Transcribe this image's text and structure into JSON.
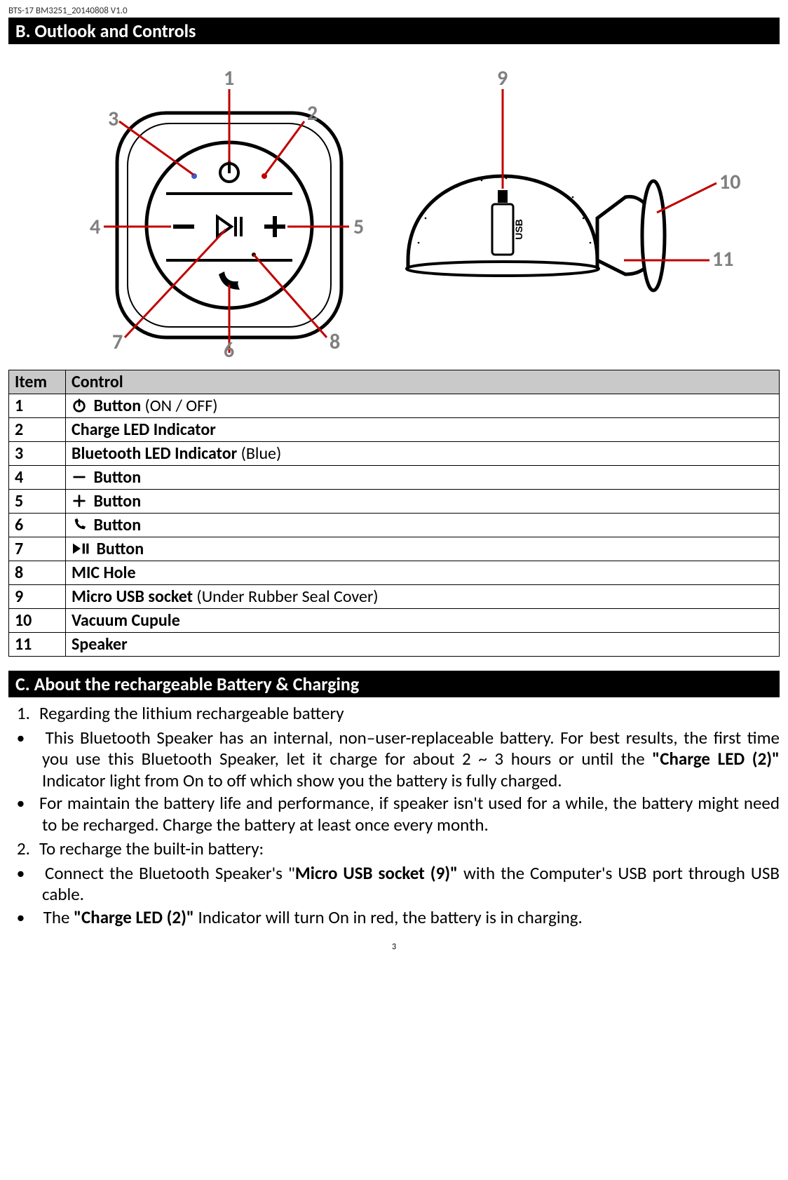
{
  "doc_header": "BTS-17 BM3251_20140808 V1.0",
  "page_number": "3",
  "section_b": {
    "title": "B.    Outlook and Controls"
  },
  "section_c": {
    "title": "C.    About the rechargeable Battery & Charging"
  },
  "diagram": {
    "callouts_top": [
      "1",
      "2",
      "3",
      "4",
      "5",
      "6",
      "7",
      "8",
      "9",
      "10",
      "11"
    ],
    "callout_color": "#c00000",
    "label_color": "#7f7f7f",
    "line_color_black": "#000000"
  },
  "controls_table": {
    "columns": [
      "Item",
      "Control"
    ],
    "rows": [
      {
        "item": "1",
        "icon": "power",
        "bold": "Button",
        "normal": " (ON / OFF)"
      },
      {
        "item": "2",
        "icon": null,
        "bold": "Charge LED Indicator",
        "normal": ""
      },
      {
        "item": "3",
        "icon": null,
        "bold": "Bluetooth LED Indicator",
        "normal": " (Blue)"
      },
      {
        "item": "4",
        "icon": "minus",
        "bold": "Button",
        "normal": ""
      },
      {
        "item": "5",
        "icon": "plus",
        "bold": "Button",
        "normal": ""
      },
      {
        "item": "6",
        "icon": "phone",
        "bold": "Button",
        "normal": ""
      },
      {
        "item": "7",
        "icon": "playpause",
        "bold": "Button",
        "normal": ""
      },
      {
        "item": "8",
        "icon": null,
        "bold": "MIC Hole",
        "normal": ""
      },
      {
        "item": "9",
        "icon": null,
        "bold": "Micro USB socket",
        "normal": " (Under Rubber Seal Cover)"
      },
      {
        "item": "10",
        "icon": null,
        "bold": "Vacuum Cupule",
        "normal": ""
      },
      {
        "item": "11",
        "icon": null,
        "bold": "Speaker",
        "normal": ""
      }
    ]
  },
  "body": {
    "line1_num": "1.",
    "line1": "Regarding the lithium rechargeable battery",
    "bullet1a": "This Bluetooth Speaker has an internal, non–user-replaceable battery. For best results, the first time you use this Bluetooth Speaker, let it charge for about 2 ~ 3 hours or until the ",
    "bullet1a_bold": "\"Charge LED (2)\"",
    "bullet1a_tail": " Indicator light from On to off which show you the battery is fully charged.",
    "bullet1b": "For maintain the battery life and performance, if speaker isn't used for a while, the battery might need to be recharged. Charge the battery at least once every month.",
    "line2_num": "2.",
    "line2": "To recharge the built-in battery:",
    "bullet2a_pre": "Connect the Bluetooth Speaker's \"",
    "bullet2a_bold": "Micro USB socket (9)\"",
    "bullet2a_tail": " with the Computer's USB port through USB cable.",
    "bullet2b_pre": "The ",
    "bullet2b_bold": "\"Charge LED (2)\"",
    "bullet2b_tail": " Indicator will turn On in red, the battery is in charging."
  }
}
